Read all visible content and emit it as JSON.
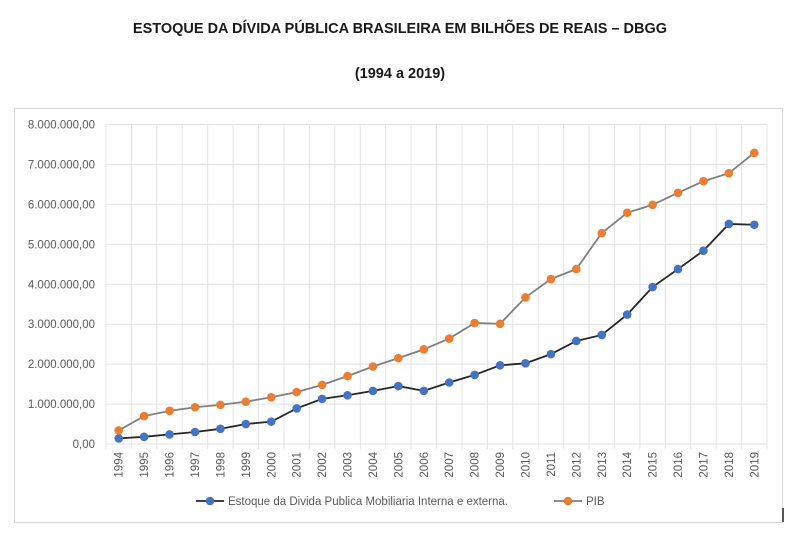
{
  "chart_data": {
    "type": "line",
    "title": "ESTOQUE DA DÍVIDA PÚBLICA BRASILEIRA EM BILHÕES DE REAIS – DBGG",
    "subtitle": "(1994 a 2019)",
    "xlabel": "",
    "ylabel": "",
    "ylim": [
      0,
      8000000
    ],
    "y_ticks": [
      "0,00",
      "1.000.000,00",
      "2.000.000,00",
      "3.000.000,00",
      "4.000.000,00",
      "5.000.000,00",
      "6.000.000,00",
      "7.000.000,00",
      "8.000.000,00"
    ],
    "y_tick_values": [
      0,
      1000000,
      2000000,
      3000000,
      4000000,
      5000000,
      6000000,
      7000000,
      8000000
    ],
    "grid": true,
    "legend_position": "bottom",
    "categories": [
      "1994",
      "1995",
      "1996",
      "1997",
      "1998",
      "1999",
      "2000",
      "2001",
      "2002",
      "2003",
      "2004",
      "2005",
      "2006",
      "2007",
      "2008",
      "2009",
      "2010",
      "2011",
      "2012",
      "2013",
      "2014",
      "2015",
      "2016",
      "2017",
      "2018",
      "2019"
    ],
    "series": [
      {
        "name": "Estoque da Divida Publica Mobiliaria Interna e externa.",
        "marker_color": "#4472c4",
        "line_color": "#262626",
        "values": [
          140000,
          180000,
          240000,
          300000,
          380000,
          500000,
          560000,
          890000,
          1130000,
          1220000,
          1330000,
          1450000,
          1330000,
          1540000,
          1730000,
          1970000,
          2020000,
          2250000,
          2580000,
          2730000,
          3240000,
          3930000,
          4380000,
          4840000,
          5510000,
          5490000
        ]
      },
      {
        "name": "PIB",
        "marker_color": "#ed7d31",
        "line_color": "#7f7f7f",
        "values": [
          340000,
          700000,
          830000,
          920000,
          980000,
          1060000,
          1170000,
          1300000,
          1480000,
          1700000,
          1940000,
          2150000,
          2370000,
          2640000,
          3030000,
          3010000,
          3670000,
          4130000,
          4380000,
          5280000,
          5790000,
          5990000,
          6290000,
          6580000,
          6780000,
          7290000
        ]
      }
    ]
  }
}
